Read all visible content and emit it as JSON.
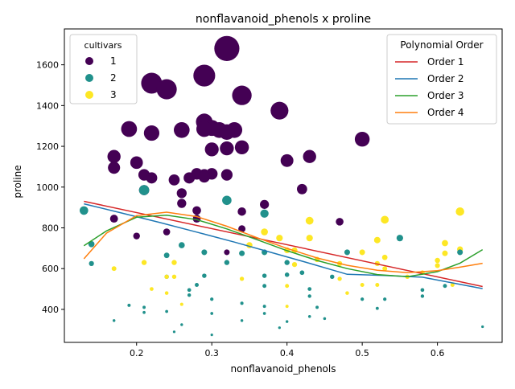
{
  "chart_data": {
    "type": "scatter",
    "title": "nonflavanoid_phenols x proline",
    "xlabel": "nonflavanoid_phenols",
    "ylabel": "proline",
    "xlim": [
      0.104,
      0.686
    ],
    "ylim": [
      238,
      1776
    ],
    "xticks": [
      0.2,
      0.3,
      0.4,
      0.5,
      0.6
    ],
    "yticks": [
      400,
      600,
      800,
      1000,
      1200,
      1400,
      1600
    ],
    "grid": false,
    "point_size_note": "marker area varies with the proline value",
    "legends": {
      "cultivars": {
        "title": "cultivars",
        "placement": "top-left",
        "entries": [
          {
            "label": "1",
            "color": "#440154"
          },
          {
            "label": "2",
            "color": "#21918c"
          },
          {
            "label": "3",
            "color": "#fde725"
          }
        ]
      },
      "fits": {
        "title": "Polynomial Order",
        "placement": "top-right",
        "entries": [
          {
            "label": "Order 1",
            "color": "#d62728"
          },
          {
            "label": "Order 2",
            "color": "#1f77b4"
          },
          {
            "label": "Order 3",
            "color": "#2ca02c"
          },
          {
            "label": "Order 4",
            "color": "#ff7f0e"
          }
        ]
      }
    },
    "series": [
      {
        "name": "1",
        "color": "#440154",
        "points": [
          [
            0.32,
            1680
          ],
          [
            0.22,
            1510
          ],
          [
            0.29,
            1547
          ],
          [
            0.24,
            1480
          ],
          [
            0.34,
            1450
          ],
          [
            0.39,
            1375
          ],
          [
            0.19,
            1285
          ],
          [
            0.22,
            1265
          ],
          [
            0.26,
            1280
          ],
          [
            0.29,
            1320
          ],
          [
            0.3,
            1290
          ],
          [
            0.31,
            1280
          ],
          [
            0.33,
            1280
          ],
          [
            0.32,
            1270
          ],
          [
            0.29,
            1285
          ],
          [
            0.5,
            1235
          ],
          [
            0.3,
            1185
          ],
          [
            0.32,
            1190
          ],
          [
            0.34,
            1195
          ],
          [
            0.17,
            1150
          ],
          [
            0.2,
            1120
          ],
          [
            0.4,
            1130
          ],
          [
            0.43,
            1150
          ],
          [
            0.17,
            1095
          ],
          [
            0.28,
            1065
          ],
          [
            0.29,
            1060
          ],
          [
            0.3,
            1065
          ],
          [
            0.32,
            1060
          ],
          [
            0.21,
            1060
          ],
          [
            0.22,
            1045
          ],
          [
            0.25,
            1035
          ],
          [
            0.27,
            1045
          ],
          [
            0.29,
            1050
          ],
          [
            0.21,
            985
          ],
          [
            0.26,
            970
          ],
          [
            0.42,
            990
          ],
          [
            0.26,
            920
          ],
          [
            0.37,
            915
          ],
          [
            0.28,
            885
          ],
          [
            0.34,
            880
          ],
          [
            0.17,
            845
          ],
          [
            0.28,
            845
          ],
          [
            0.47,
            830
          ],
          [
            0.34,
            795
          ],
          [
            0.2,
            760
          ],
          [
            0.24,
            780
          ],
          [
            0.32,
            680
          ]
        ]
      },
      {
        "name": "2",
        "color": "#21918c",
        "points": [
          [
            0.21,
            985
          ],
          [
            0.32,
            935
          ],
          [
            0.37,
            870
          ],
          [
            0.13,
            885
          ],
          [
            0.14,
            720
          ],
          [
            0.26,
            715
          ],
          [
            0.55,
            750
          ],
          [
            0.32,
            630
          ],
          [
            0.24,
            665
          ],
          [
            0.37,
            680
          ],
          [
            0.48,
            680
          ],
          [
            0.14,
            625
          ],
          [
            0.27,
            495
          ],
          [
            0.28,
            520
          ],
          [
            0.29,
            565
          ],
          [
            0.29,
            680
          ],
          [
            0.21,
            410
          ],
          [
            0.24,
            390
          ],
          [
            0.27,
            470
          ],
          [
            0.3,
            450
          ],
          [
            0.3,
            380
          ],
          [
            0.34,
            345
          ],
          [
            0.34,
            430
          ],
          [
            0.37,
            380
          ],
          [
            0.37,
            515
          ],
          [
            0.39,
            310
          ],
          [
            0.4,
            630
          ],
          [
            0.4,
            570
          ],
          [
            0.4,
            340
          ],
          [
            0.42,
            580
          ],
          [
            0.43,
            365
          ],
          [
            0.43,
            500
          ],
          [
            0.44,
            410
          ],
          [
            0.45,
            355
          ],
          [
            0.46,
            560
          ],
          [
            0.5,
            450
          ],
          [
            0.52,
            405
          ],
          [
            0.53,
            450
          ],
          [
            0.58,
            465
          ],
          [
            0.58,
            495
          ],
          [
            0.61,
            515
          ],
          [
            0.63,
            680
          ],
          [
            0.66,
            315
          ],
          [
            0.25,
            290
          ],
          [
            0.3,
            275
          ],
          [
            0.19,
            420
          ],
          [
            0.17,
            345
          ],
          [
            0.34,
            675
          ],
          [
            0.24,
            560
          ],
          [
            0.26,
            325
          ],
          [
            0.21,
            385
          ],
          [
            0.37,
            415
          ],
          [
            0.37,
            565
          ],
          [
            0.43,
            465
          ]
        ]
      },
      {
        "name": "3",
        "color": "#fde725",
        "points": [
          [
            0.43,
            835
          ],
          [
            0.53,
            840
          ],
          [
            0.63,
            880
          ],
          [
            0.37,
            780
          ],
          [
            0.39,
            750
          ],
          [
            0.43,
            750
          ],
          [
            0.52,
            740
          ],
          [
            0.61,
            725
          ],
          [
            0.63,
            695
          ],
          [
            0.41,
            690
          ],
          [
            0.5,
            680
          ],
          [
            0.61,
            675
          ],
          [
            0.21,
            630
          ],
          [
            0.25,
            630
          ],
          [
            0.35,
            715
          ],
          [
            0.4,
            690
          ],
          [
            0.44,
            645
          ],
          [
            0.47,
            625
          ],
          [
            0.52,
            625
          ],
          [
            0.53,
            655
          ],
          [
            0.56,
            560
          ],
          [
            0.58,
            580
          ],
          [
            0.62,
            520
          ],
          [
            0.17,
            600
          ],
          [
            0.24,
            560
          ],
          [
            0.25,
            560
          ],
          [
            0.22,
            500
          ],
          [
            0.24,
            480
          ],
          [
            0.26,
            425
          ],
          [
            0.34,
            550
          ],
          [
            0.4,
            415
          ],
          [
            0.41,
            620
          ],
          [
            0.47,
            550
          ],
          [
            0.48,
            480
          ],
          [
            0.5,
            520
          ],
          [
            0.52,
            520
          ],
          [
            0.53,
            600
          ],
          [
            0.6,
            640
          ],
          [
            0.4,
            515
          ],
          [
            0.6,
            615
          ]
        ]
      }
    ],
    "fits": [
      {
        "name": "Order 1",
        "x": [
          0.13,
          0.66
        ],
        "y": [
          930,
          512
        ]
      },
      {
        "name": "Order 2",
        "x": [
          0.13,
          0.18,
          0.23,
          0.28,
          0.33,
          0.38,
          0.43,
          0.48,
          0.53,
          0.58,
          0.66
        ],
        "y": [
          918,
          873,
          827,
          779,
          730,
          678,
          626,
          572,
          566,
          558,
          502
        ]
      },
      {
        "name": "Order 3",
        "x": [
          0.13,
          0.16,
          0.2,
          0.24,
          0.28,
          0.32,
          0.36,
          0.4,
          0.44,
          0.48,
          0.52,
          0.56,
          0.6,
          0.63,
          0.66
        ],
        "y": [
          712,
          785,
          852,
          862,
          840,
          795,
          742,
          688,
          640,
          600,
          571,
          560,
          585,
          627,
          693
        ]
      },
      {
        "name": "Order 4",
        "x": [
          0.13,
          0.16,
          0.2,
          0.24,
          0.28,
          0.32,
          0.36,
          0.4,
          0.44,
          0.48,
          0.52,
          0.56,
          0.6,
          0.63,
          0.66
        ],
        "y": [
          648,
          774,
          860,
          877,
          855,
          808,
          752,
          699,
          652,
          616,
          592,
          580,
          590,
          607,
          626
        ]
      }
    ]
  }
}
